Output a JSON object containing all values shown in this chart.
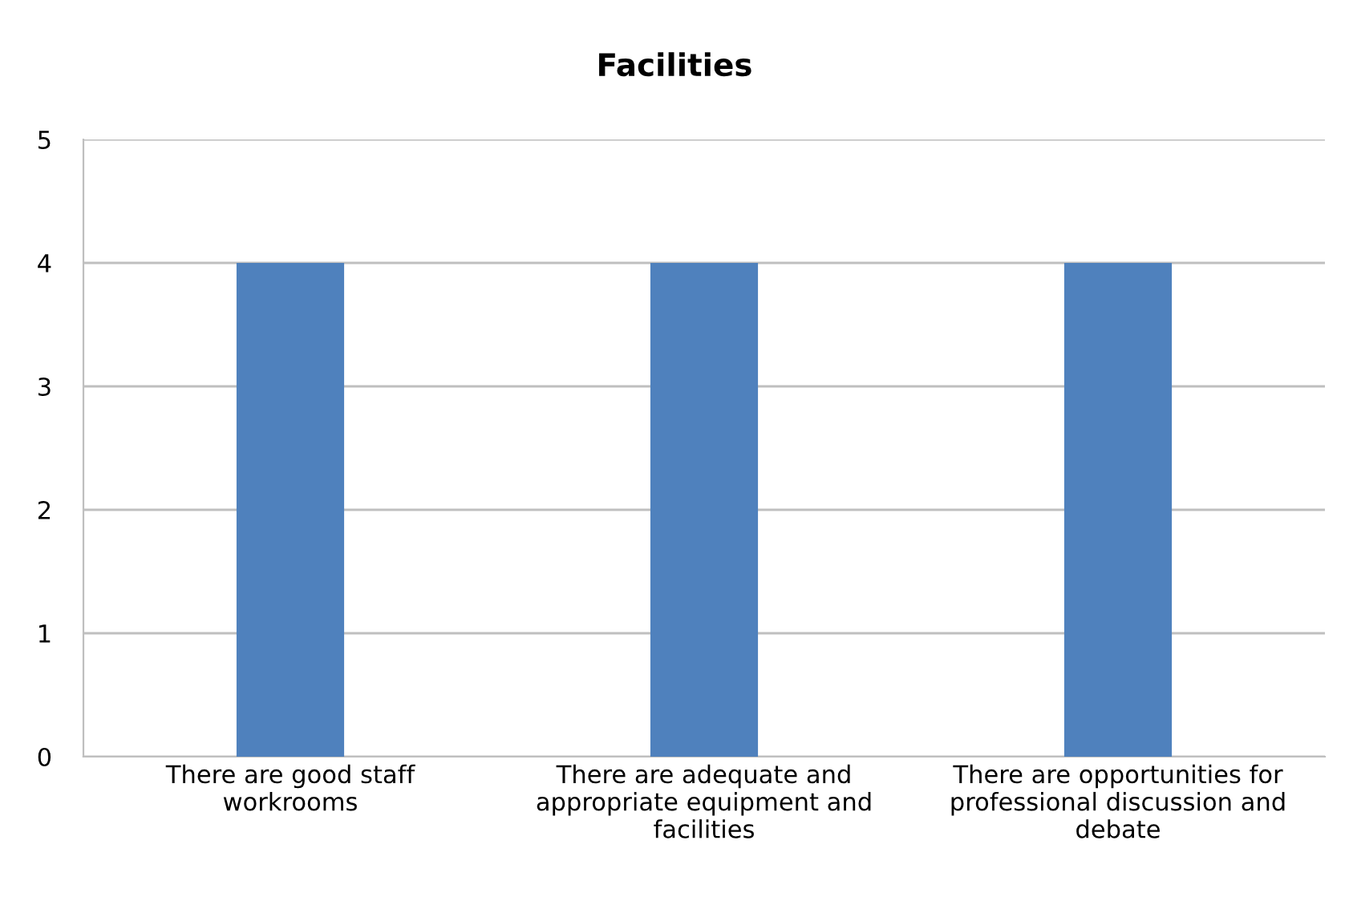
{
  "chart_data": {
    "type": "bar",
    "title": "Facilities",
    "categories": [
      "There are good staff workrooms",
      "There are adequate and appropriate equipment and facilities",
      "There are opportunities for professional discussion and debate"
    ],
    "values": [
      4,
      4,
      4
    ],
    "color": "#4f81bd",
    "ylim": [
      0,
      5
    ],
    "yticks": [
      0,
      1,
      2,
      3,
      4,
      5
    ],
    "grid": "y"
  }
}
